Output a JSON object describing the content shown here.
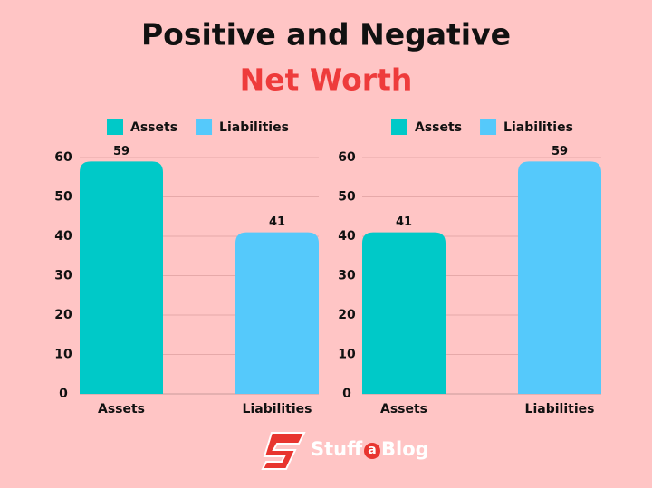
{
  "header": {
    "title": "Positive and Negative",
    "subtitle": "Net Worth"
  },
  "chart_data": [
    {
      "type": "bar",
      "categories": [
        "Assets",
        "Liabilities"
      ],
      "values": [
        59,
        41
      ],
      "colors": [
        "#00c9c8",
        "#55c9fb"
      ],
      "legend": true,
      "ylim": [
        0,
        60
      ],
      "yticks": [
        0,
        10,
        20,
        30,
        40,
        50,
        60
      ],
      "grid": true
    },
    {
      "type": "bar",
      "categories": [
        "Assets",
        "Liabilities"
      ],
      "values": [
        41,
        59
      ],
      "colors": [
        "#00c9c8",
        "#55c9fb"
      ],
      "legend": true,
      "ylim": [
        0,
        60
      ],
      "yticks": [
        0,
        10,
        20,
        30,
        40,
        50,
        60
      ],
      "grid": true
    }
  ],
  "logo": {
    "part1": "Stuff",
    "part2": "a",
    "part3": "Blog"
  }
}
